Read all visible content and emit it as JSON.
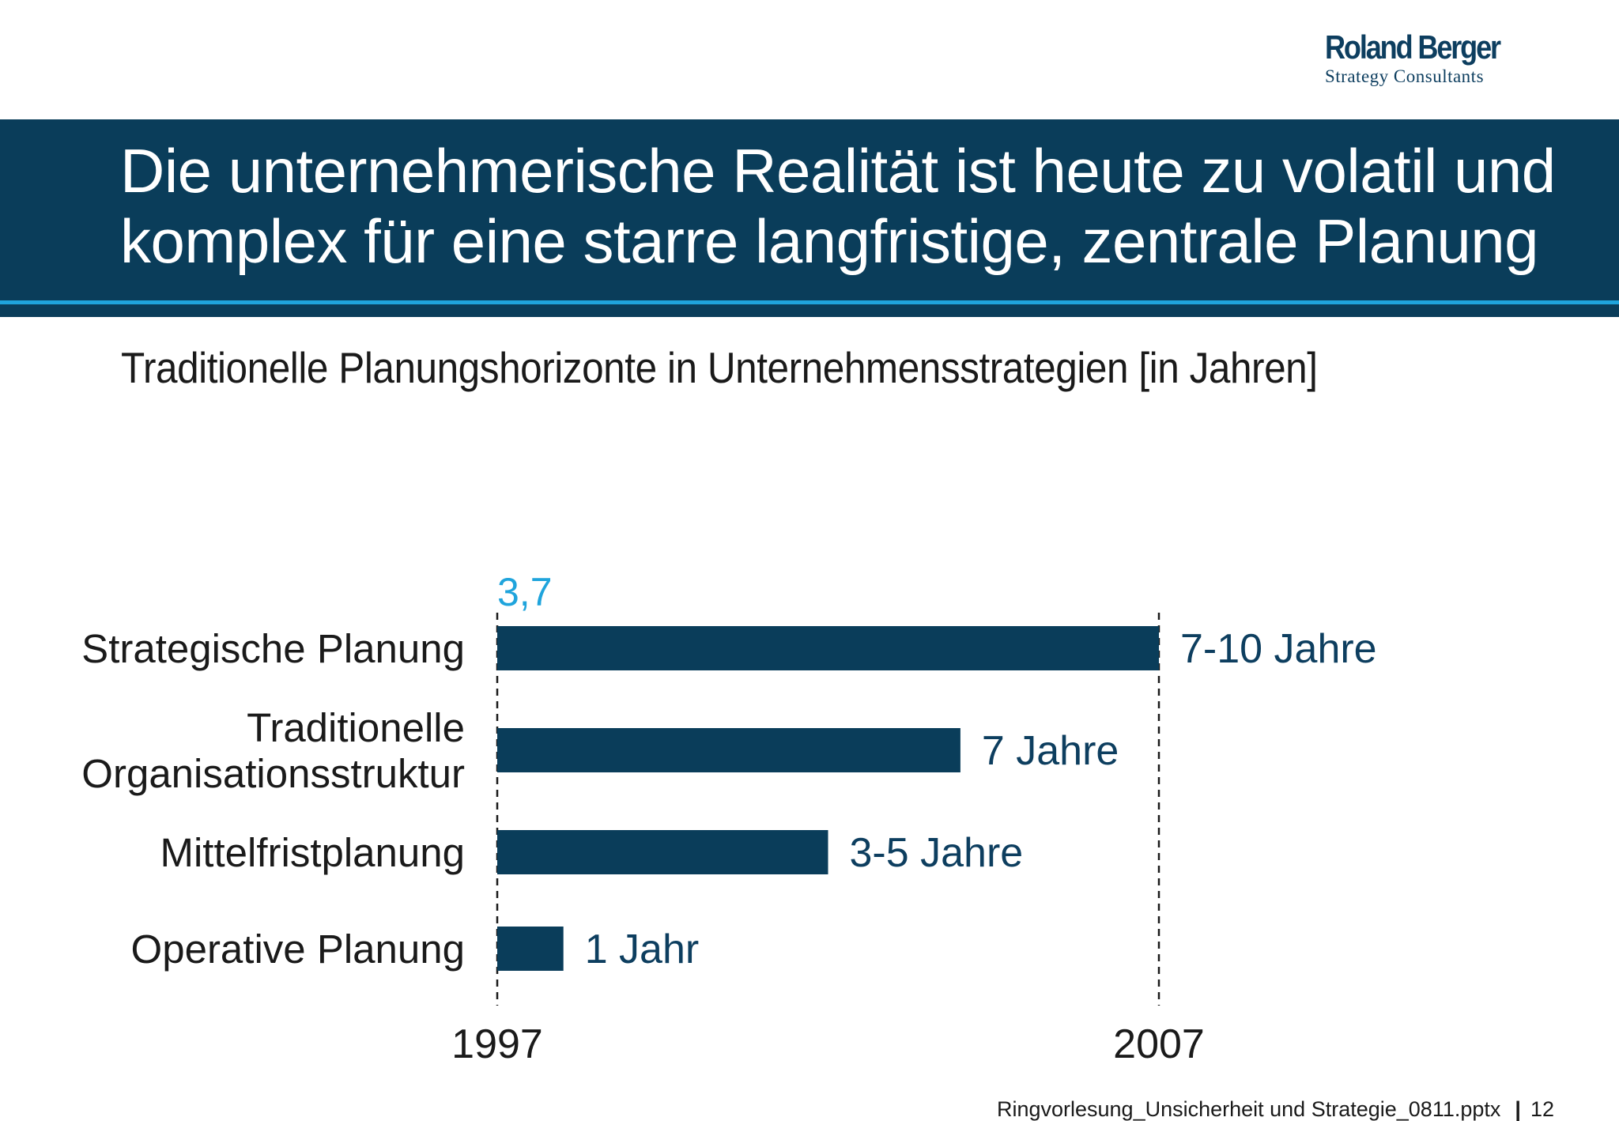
{
  "logo": {
    "name": "Roland Berger",
    "tagline": "Strategy Consultants"
  },
  "title": "Die unternehmerische Realität ist heute zu volatil und komplex für eine starre langfristige, zentrale Planung",
  "subtitle": "Traditionelle Planungshorizonte in Unternehmensstrategien [in Jahren]",
  "chart_data": {
    "type": "bar",
    "orientation": "horizontal",
    "categories": [
      [
        "Strategische Planung"
      ],
      [
        "Traditionelle",
        "Organisationsstruktur"
      ],
      [
        "Mittelfristplanung"
      ],
      [
        "Operative Planung"
      ]
    ],
    "values": [
      10,
      7,
      5,
      1
    ],
    "value_labels": [
      "7-10 Jahre",
      "7 Jahre",
      "3-5 Jahre",
      "1 Jahr"
    ],
    "x_ticks": [
      "1997",
      "2007"
    ],
    "xlim": [
      0,
      10
    ],
    "reference_value": "3,7",
    "bar_color": "#0a3d5a",
    "label_color": "#0d3e5f",
    "reference_color": "#1fa4dc"
  },
  "footer": {
    "file": "Ringvorlesung_Unsicherheit und Strategie_0811.pptx",
    "page": "12"
  }
}
